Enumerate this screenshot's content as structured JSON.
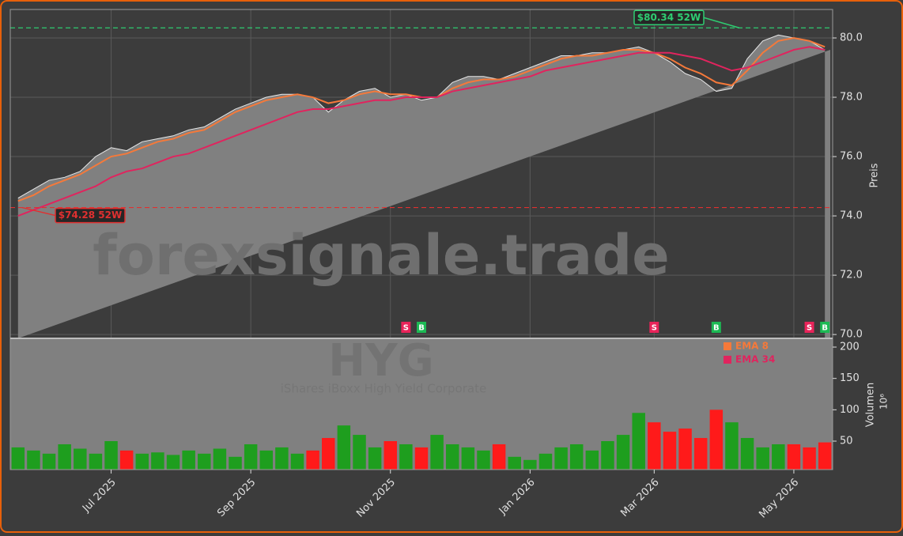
{
  "chart_data": {
    "type": "area",
    "watermark": "forexsignale.trade",
    "symbol": "HYG",
    "name": "iShares iBoxx High Yield Corporate",
    "ylabel": "Preis",
    "ylim": [
      69.87,
      80.96
    ],
    "yticks": [
      {
        "value": 70,
        "label": "70.0"
      },
      {
        "value": 72,
        "label": "72.0"
      },
      {
        "value": 74,
        "label": "74.0"
      },
      {
        "value": 76,
        "label": "76.0"
      },
      {
        "value": 78,
        "label": "78.0"
      },
      {
        "value": 80,
        "label": "80.0"
      }
    ],
    "grid": true,
    "color": "#808080",
    "line_color": "#e8e8e8",
    "categories": [
      null,
      null,
      null,
      null,
      null,
      null,
      "Jul 2025",
      null,
      null,
      null,
      null,
      null,
      null,
      null,
      null,
      "Sep 2025",
      null,
      null,
      null,
      null,
      null,
      null,
      null,
      null,
      "Nov 2025",
      null,
      null,
      null,
      null,
      null,
      null,
      null,
      null,
      "Jan 2026",
      null,
      null,
      null,
      null,
      null,
      null,
      null,
      "Mar 2026",
      null,
      null,
      null,
      null,
      null,
      null,
      null,
      null,
      "May 2026",
      null,
      null
    ],
    "values": [
      74.6,
      74.9,
      75.2,
      75.3,
      75.5,
      76.0,
      76.3,
      76.2,
      76.5,
      76.6,
      76.7,
      76.9,
      77.0,
      77.3,
      77.6,
      77.8,
      78.0,
      78.1,
      78.1,
      78.0,
      77.5,
      77.9,
      78.2,
      78.3,
      78.0,
      78.1,
      77.9,
      78.0,
      78.5,
      78.7,
      78.7,
      78.6,
      78.8,
      79.0,
      79.2,
      79.4,
      79.4,
      79.5,
      79.5,
      79.6,
      79.7,
      79.5,
      79.2,
      78.8,
      78.6,
      78.2,
      78.3,
      79.3,
      79.9,
      80.1,
      80.0,
      79.9,
      79.6
    ],
    "series": [
      {
        "name": "EMA 8",
        "color": "#f5793a",
        "values": [
          74.5,
          74.7,
          75.0,
          75.2,
          75.4,
          75.7,
          76.0,
          76.1,
          76.3,
          76.5,
          76.6,
          76.8,
          76.9,
          77.2,
          77.5,
          77.7,
          77.9,
          78.0,
          78.1,
          78.0,
          77.8,
          77.9,
          78.1,
          78.2,
          78.1,
          78.1,
          78.0,
          78.0,
          78.3,
          78.5,
          78.6,
          78.6,
          78.7,
          78.9,
          79.1,
          79.3,
          79.4,
          79.4,
          79.5,
          79.6,
          79.6,
          79.5,
          79.3,
          79.0,
          78.8,
          78.5,
          78.4,
          78.9,
          79.5,
          79.9,
          80.0,
          79.9,
          79.7
        ]
      },
      {
        "name": "EMA 34",
        "color": "#e0245e",
        "values": [
          74.0,
          74.2,
          74.4,
          74.6,
          74.8,
          75.0,
          75.3,
          75.5,
          75.6,
          75.8,
          76.0,
          76.1,
          76.3,
          76.5,
          76.7,
          76.9,
          77.1,
          77.3,
          77.5,
          77.6,
          77.6,
          77.7,
          77.8,
          77.9,
          77.9,
          78.0,
          78.0,
          78.0,
          78.2,
          78.3,
          78.4,
          78.5,
          78.6,
          78.7,
          78.9,
          79.0,
          79.1,
          79.2,
          79.3,
          79.4,
          79.5,
          79.5,
          79.5,
          79.4,
          79.3,
          79.1,
          78.9,
          79.0,
          79.2,
          79.4,
          79.6,
          79.7,
          79.6
        ]
      }
    ],
    "annotations": [
      {
        "label": "$80.34 52W",
        "value": 80.34,
        "color": "#2ecc71"
      },
      {
        "label": "$74.28 52W",
        "value": 74.28,
        "color": "#e03030"
      }
    ],
    "signals": [
      null,
      null,
      null,
      null,
      null,
      null,
      null,
      null,
      null,
      null,
      null,
      null,
      null,
      null,
      null,
      null,
      null,
      null,
      null,
      null,
      null,
      null,
      null,
      null,
      null,
      {
        "label": "S",
        "color": "#e8245a"
      },
      {
        "label": "B",
        "color": "#1db954"
      },
      null,
      null,
      null,
      null,
      null,
      null,
      null,
      null,
      null,
      null,
      null,
      null,
      null,
      null,
      {
        "label": "S",
        "color": "#e8245a"
      },
      null,
      null,
      null,
      {
        "label": "B",
        "color": "#1db954"
      },
      null,
      null,
      null,
      null,
      null,
      {
        "label": "S",
        "color": "#e8245a"
      },
      {
        "label": "B",
        "color": "#1db954"
      }
    ],
    "volume": {
      "label": "Volumen",
      "unit": "10⁶",
      "ylim": [
        4.6,
        213.9
      ],
      "yticks": [
        50,
        100,
        150,
        200
      ],
      "up_color": "#1e9e1e",
      "down_color": "#ff1a1a",
      "values": [
        40,
        35,
        30,
        45,
        38,
        30,
        50,
        35,
        30,
        32,
        28,
        35,
        30,
        38,
        25,
        45,
        35,
        40,
        30,
        35,
        55,
        75,
        60,
        40,
        50,
        45,
        40,
        60,
        45,
        40,
        35,
        45,
        25,
        20,
        30,
        40,
        45,
        35,
        50,
        60,
        95,
        80,
        65,
        70,
        55,
        100,
        80,
        55,
        40,
        45,
        45,
        40,
        48
      ]
    }
  }
}
